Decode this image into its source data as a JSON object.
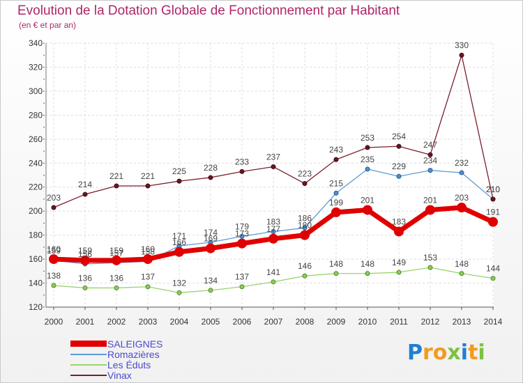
{
  "chart_data": {
    "type": "line",
    "title": "Evolution de la Dotation Globale de Fonctionnement par Habitant",
    "subtitle": "(en € et par an)",
    "xlabel": "",
    "ylabel": "",
    "ylim": [
      120,
      340
    ],
    "yticks": [
      120,
      140,
      160,
      180,
      200,
      220,
      240,
      260,
      280,
      300,
      320,
      340
    ],
    "grid": true,
    "legend_position": "bottom-left",
    "categories": [
      "2000",
      "2001",
      "2002",
      "2003",
      "2004",
      "2005",
      "2006",
      "2007",
      "2008",
      "2009",
      "2010",
      "2011",
      "2012",
      "2013",
      "2014"
    ],
    "series": [
      {
        "name": "SALEIGNES",
        "color": "#e00000",
        "values": [
          160,
          159,
          159,
          160,
          166,
          169,
          173,
          177,
          180,
          199,
          201,
          183,
          201,
          203,
          191
        ]
      },
      {
        "name": "Romazières",
        "color": "#5b9bd5",
        "values": [
          159,
          156,
          157,
          158,
          171,
          174,
          179,
          183,
          186,
          215,
          235,
          229,
          234,
          232,
          210
        ]
      },
      {
        "name": "Les Éduts",
        "color": "#99d36b",
        "values": [
          138,
          136,
          136,
          137,
          132,
          134,
          137,
          141,
          146,
          148,
          148,
          149,
          153,
          148,
          144
        ]
      },
      {
        "name": "Vinax",
        "color": "#7a1e2c",
        "values": [
          203,
          214,
          221,
          221,
          225,
          228,
          233,
          237,
          223,
          243,
          253,
          254,
          247,
          330,
          210
        ]
      }
    ]
  },
  "logo": {
    "letters": [
      "P",
      "r",
      "o",
      "x",
      "i",
      "t",
      "i"
    ],
    "colors": [
      "#1f7fd1",
      "#f39a1e",
      "#f39a1e",
      "#7cc242",
      "#1f7fd1",
      "#f39a1e",
      "#7cc242"
    ]
  }
}
